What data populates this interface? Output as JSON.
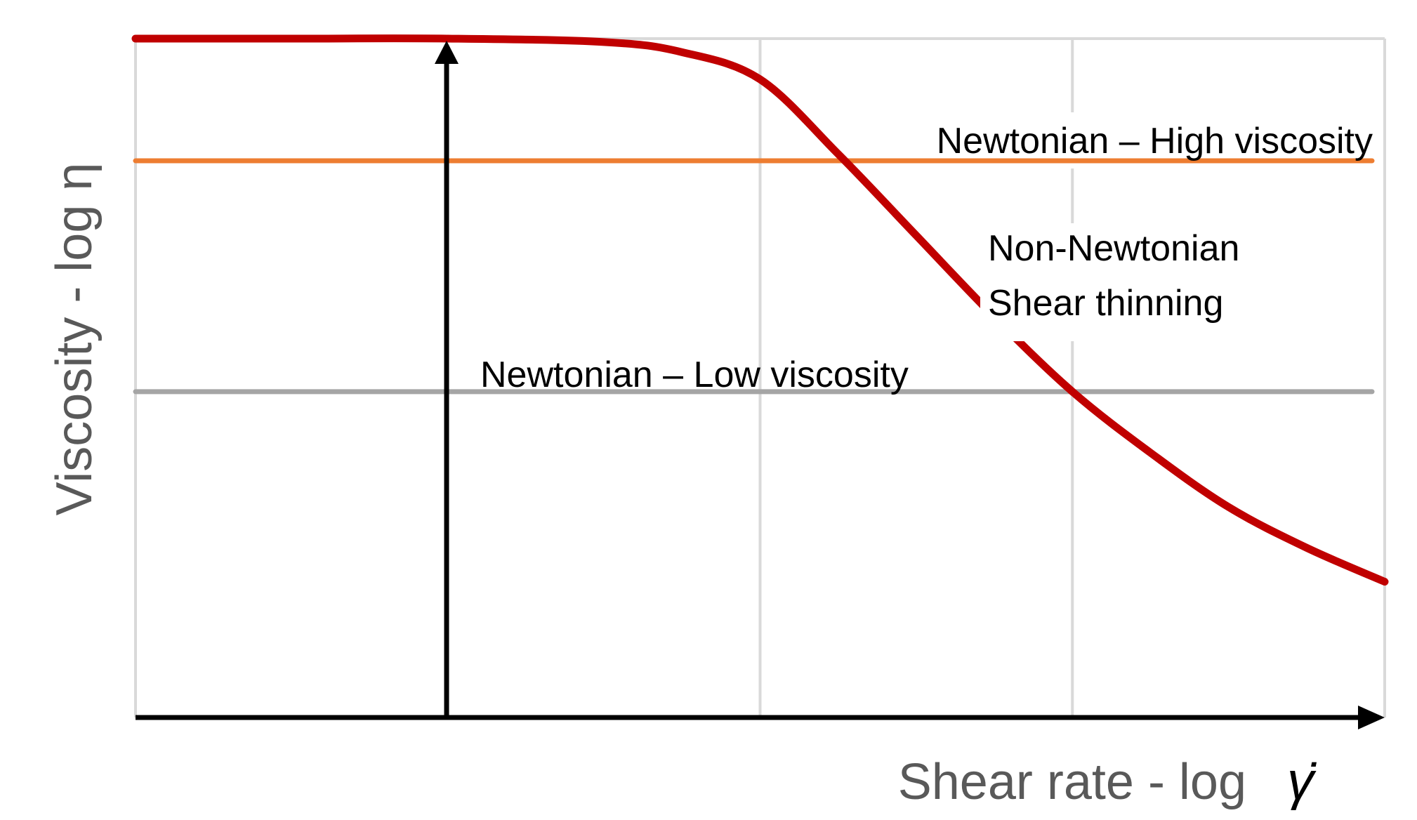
{
  "chart_data": {
    "type": "line",
    "xlabel": "Shear rate - log",
    "xlabel_symbol": "γ̇",
    "ylabel": "Viscosity - log η",
    "x_scale": "log",
    "y_scale": "log",
    "grid": true,
    "series": [
      {
        "name": "Non-Newtonian Shear thinning",
        "label_lines": [
          "Non-Newtonian",
          "Shear thinning"
        ],
        "color": "#c00000",
        "x": [
          0,
          0.5,
          1,
          1.5,
          1.75,
          2,
          2.25,
          2.5,
          2.75,
          3,
          3.25,
          3.5,
          3.75,
          4
        ],
        "y": [
          10,
          10,
          10,
          9.95,
          9.8,
          9.4,
          8.3,
          7.1,
          5.9,
          4.8,
          3.9,
          3.1,
          2.5,
          2.0
        ]
      },
      {
        "name": "Newtonian – High viscosity",
        "color": "#ed7d31",
        "x": [
          0,
          4
        ],
        "y": [
          8.2,
          8.2
        ]
      },
      {
        "name": "Newtonian – Low viscosity",
        "color": "#a5a5a5",
        "x": [
          0,
          4
        ],
        "y": [
          4.8,
          4.8
        ]
      }
    ]
  },
  "colors": {
    "axis": "#000000",
    "grid": "#d9d9d9",
    "axis_label": "#595959",
    "annotation": "#000000"
  }
}
